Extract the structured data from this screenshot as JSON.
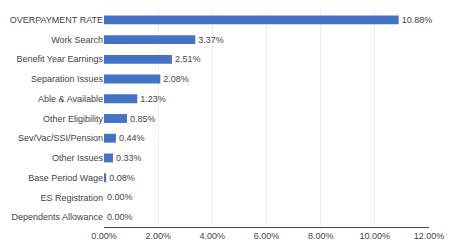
{
  "chart_data": {
    "type": "bar",
    "orientation": "horizontal",
    "categories": [
      "Dependents Allowance",
      "ES Registration",
      "Base Period Wage",
      "Other Issues",
      "Sev/Vac/SSI/Pension",
      "Other Eligibility",
      "Able & Available",
      "Separation Issues",
      "Benefit Year Earnings",
      "Work Search",
      "OVERPAYMENT RATE"
    ],
    "values": [
      0.0,
      0.0,
      0.0008,
      0.0033,
      0.0044,
      0.0085,
      0.0123,
      0.0208,
      0.0251,
      0.0337,
      0.1088
    ],
    "value_labels": [
      "0.00%",
      "0.00%",
      "0.08%",
      "0.33%",
      "0.44%",
      "0.85%",
      "1.23%",
      "2.08%",
      "2.51%",
      "3.37%",
      "10.88%"
    ],
    "color": "#4472C4",
    "xlim": [
      0,
      0.12
    ],
    "xticks": [
      {
        "value": 0.0,
        "label": "0.00%"
      },
      {
        "value": 0.02,
        "label": "2.00%"
      },
      {
        "value": 0.04,
        "label": "4.00%"
      },
      {
        "value": 0.06,
        "label": "6.00%"
      },
      {
        "value": 0.08,
        "label": "8.00%"
      },
      {
        "value": 0.1,
        "label": "10.00%"
      },
      {
        "value": 0.12,
        "label": "12.00%"
      }
    ],
    "grid": true,
    "data_labels": true
  }
}
